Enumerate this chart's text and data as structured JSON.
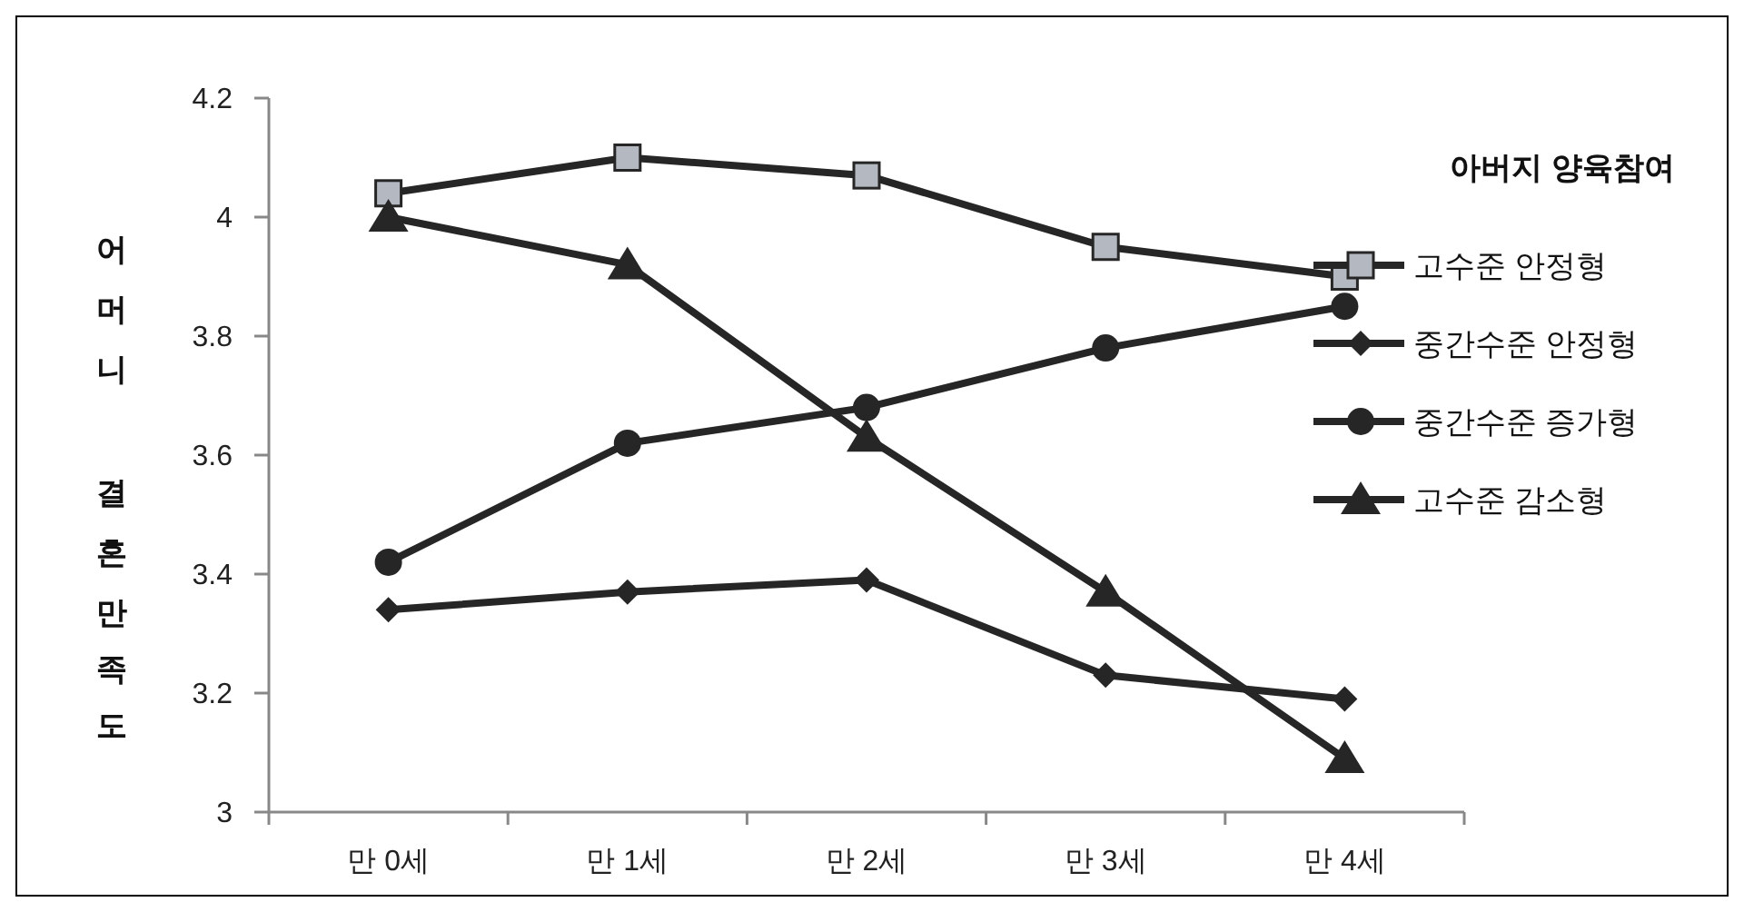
{
  "chart_data": {
    "type": "line",
    "ylabel": "어머니 결혼만족도",
    "legend_title": "아버지 양육참여",
    "categories": [
      "만 0세",
      "만 1세",
      "만 2세",
      "만 3세",
      "만 4세"
    ],
    "ylim": [
      3,
      4.2
    ],
    "yticks": [
      3,
      3.2,
      3.4,
      3.6,
      3.8,
      4,
      4.2
    ],
    "grid": false,
    "legend": "right",
    "series": [
      {
        "name": "고수준 안정형",
        "color": "#262626",
        "marker": "square",
        "values": [
          4.04,
          4.1,
          4.07,
          3.95,
          3.9
        ]
      },
      {
        "name": "중간수준 안정형",
        "color": "#262626",
        "marker": "diamond",
        "values": [
          3.34,
          3.37,
          3.39,
          3.23,
          3.19
        ]
      },
      {
        "name": "중간수준 증가형",
        "color": "#262626",
        "marker": "circle",
        "values": [
          3.42,
          3.62,
          3.68,
          3.78,
          3.85
        ]
      },
      {
        "name": "고수준 감소형",
        "color": "#262626",
        "marker": "triangle",
        "values": [
          4.0,
          3.92,
          3.63,
          3.37,
          3.09
        ]
      }
    ]
  }
}
